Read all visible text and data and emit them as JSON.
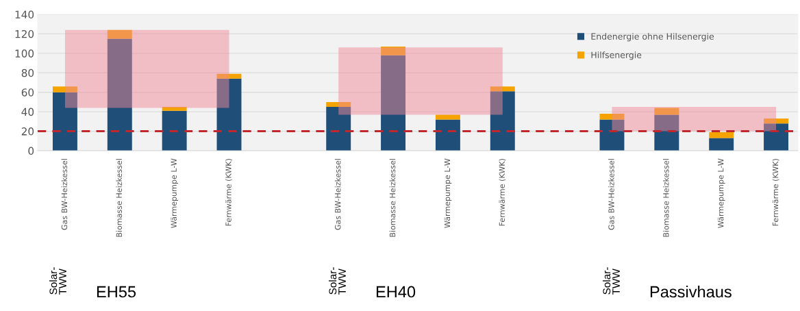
{
  "chart_data": {
    "type": "bar",
    "stacked": true,
    "categories": [
      "Gas BW-Heizkessel",
      "Biomasse Heizkessel",
      "Wärmepumpe L-W",
      "Fernwärme (KWK)",
      null,
      "Gas BW-Heizkessel",
      "Biomasse Heizkessel",
      "Wärmepumpe L-W",
      "Fernwärme (KWK)",
      null,
      "Gas BW-Heizkessel",
      "Biomasse Heizkessel",
      "Wärmepumpe L-W",
      "Fernwärme (KWK)"
    ],
    "series": [
      {
        "name": "Endenergie ohne Hilsenergie",
        "color": "#1f4e79",
        "values": [
          60,
          115,
          41,
          74,
          null,
          45,
          98,
          32,
          61,
          null,
          32,
          37,
          13,
          28
        ]
      },
      {
        "name": "Hilfsenergie",
        "color": "#f5a300",
        "values": [
          6,
          9,
          4,
          5,
          null,
          5,
          9,
          5,
          5,
          null,
          6,
          7,
          6,
          5
        ]
      },
      {
        "type": "area",
        "color": "#f08a98",
        "values": [
          null,
          null,
          null,
          null,
          null,
          null,
          null,
          null,
          null,
          null,
          null,
          null,
          null,
          null
        ],
        "lower": [
          44,
          44,
          44,
          44,
          null,
          37,
          37,
          37,
          37,
          null,
          20,
          20,
          20,
          20
        ],
        "upper": [
          124,
          124,
          124,
          124,
          null,
          106,
          106,
          106,
          106,
          null,
          45,
          45,
          45,
          45
        ]
      }
    ],
    "ylim": [
      0,
      140
    ],
    "yticks": [
      0,
      20,
      40,
      60,
      80,
      100,
      120,
      140
    ],
    "ref_lines": [
      {
        "axis": "y",
        "value": 20,
        "color": "#c0282d",
        "line_style": "dashed"
      }
    ],
    "annotations": [
      "Solar-\nTWW",
      "EH55",
      "Solar-\nTWW",
      "EH40",
      "Solar-\nTWW",
      "Passivhaus"
    ],
    "grid": "y",
    "legend": "top right"
  }
}
